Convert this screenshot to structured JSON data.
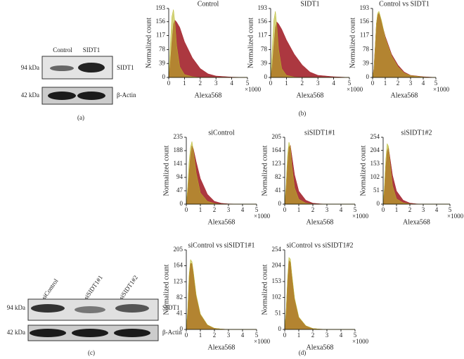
{
  "figure": {
    "panel_labels": [
      "(a)",
      "(b)",
      "(c)",
      "(d)"
    ],
    "blot_a": {
      "columns": [
        "Control",
        "SIDT1"
      ],
      "markers": [
        "94 kDa",
        "42 kDa"
      ],
      "proteins": [
        "SIDT1",
        "β-Actin"
      ]
    },
    "blot_c": {
      "columns": [
        "siControl",
        "siSIDT1#1",
        "siSIDT1#2"
      ],
      "markers": [
        "94 kDa",
        "42 kDa"
      ],
      "proteins": [
        "SIDT1",
        "β-Actin"
      ]
    }
  },
  "chart_data": [
    {
      "type": "area",
      "title": "Control",
      "x_label": "Alexa568",
      "x_unit": "×1000",
      "y_label": "Normalized count",
      "xlim": [
        0,
        5
      ],
      "xticks": [
        0,
        1,
        2,
        3,
        4,
        5
      ],
      "ylim": [
        0,
        193
      ],
      "yticks": [
        0,
        39,
        78,
        117,
        156,
        193
      ],
      "x": [
        0,
        0.1,
        0.2,
        0.3,
        0.4,
        0.5,
        0.7,
        1,
        1.5,
        2,
        2.5,
        3,
        4,
        5
      ],
      "series": [
        {
          "color": "#a3222b",
          "values": [
            0,
            40,
            100,
            150,
            160,
            155,
            140,
            100,
            55,
            25,
            10,
            4,
            1,
            0
          ]
        },
        {
          "color": "#b8b828",
          "values": [
            0,
            90,
            170,
            190,
            150,
            90,
            30,
            8,
            2,
            0,
            0,
            0,
            0,
            0
          ]
        }
      ]
    },
    {
      "type": "area",
      "title": "SIDT1",
      "x_label": "Alexa568",
      "x_unit": "×1000",
      "y_label": "Normalized count",
      "xlim": [
        0,
        5
      ],
      "xticks": [
        0,
        1,
        2,
        3,
        4,
        5
      ],
      "ylim": [
        0,
        193
      ],
      "yticks": [
        0,
        39,
        78,
        117,
        156,
        193
      ],
      "x": [
        0,
        0.1,
        0.2,
        0.3,
        0.4,
        0.5,
        0.7,
        1,
        1.5,
        2,
        2.5,
        3,
        4,
        5
      ],
      "series": [
        {
          "color": "#a3222b",
          "values": [
            0,
            30,
            90,
            140,
            155,
            150,
            135,
            105,
            65,
            35,
            15,
            6,
            2,
            0
          ]
        },
        {
          "color": "#b8b828",
          "values": [
            0,
            80,
            160,
            185,
            140,
            80,
            25,
            6,
            1,
            0,
            0,
            0,
            0,
            0
          ]
        }
      ]
    },
    {
      "type": "area",
      "title": "Control vs SIDT1",
      "x_label": "Alexa568",
      "x_unit": "×1000",
      "y_label": "Normalized count",
      "xlim": [
        0,
        5
      ],
      "xticks": [
        0,
        1,
        2,
        3,
        4,
        5
      ],
      "ylim": [
        0,
        193
      ],
      "yticks": [
        0,
        39,
        78,
        117,
        156,
        193
      ],
      "x": [
        0,
        0.1,
        0.2,
        0.3,
        0.4,
        0.5,
        0.7,
        1,
        1.5,
        2,
        2.5,
        3,
        4,
        5
      ],
      "series": [
        {
          "color": "#a3222b",
          "values": [
            0,
            25,
            85,
            150,
            175,
            180,
            155,
            115,
            65,
            35,
            15,
            6,
            2,
            0
          ]
        },
        {
          "color": "#b8b828",
          "values": [
            0,
            20,
            80,
            150,
            180,
            185,
            160,
            110,
            60,
            30,
            12,
            5,
            1,
            0
          ]
        }
      ]
    },
    {
      "type": "area",
      "title": "siControl",
      "x_label": "Alexa568",
      "x_unit": "×1000",
      "y_label": "Normalized count",
      "xlim": [
        0,
        5
      ],
      "xticks": [
        0,
        1,
        2,
        3,
        4,
        5
      ],
      "ylim": [
        0,
        235
      ],
      "yticks": [
        0,
        47,
        94,
        141,
        188,
        235
      ],
      "x": [
        0,
        0.1,
        0.2,
        0.3,
        0.4,
        0.5,
        0.7,
        1,
        1.5,
        2,
        2.5,
        3,
        4,
        5
      ],
      "series": [
        {
          "color": "#a3222b",
          "values": [
            0,
            40,
            110,
            170,
            205,
            195,
            150,
            90,
            35,
            10,
            3,
            1,
            0,
            0
          ]
        },
        {
          "color": "#b8b828",
          "values": [
            0,
            60,
            150,
            200,
            220,
            190,
            110,
            40,
            10,
            2,
            0,
            0,
            0,
            0
          ]
        }
      ]
    },
    {
      "type": "area",
      "title": "siSIDT1#1",
      "x_label": "Alexa568",
      "x_unit": "×1000",
      "y_label": "Normalized count",
      "xlim": [
        0,
        5
      ],
      "xticks": [
        0,
        1,
        2,
        3,
        4,
        5
      ],
      "ylim": [
        0,
        205
      ],
      "yticks": [
        0,
        41,
        82,
        123,
        164,
        205
      ],
      "x": [
        0,
        0.1,
        0.2,
        0.3,
        0.4,
        0.5,
        0.7,
        1,
        1.5,
        2,
        2.5,
        3,
        4,
        5
      ],
      "series": [
        {
          "color": "#a3222b",
          "values": [
            0,
            45,
            120,
            175,
            180,
            150,
            90,
            40,
            12,
            3,
            1,
            0,
            0,
            0
          ]
        },
        {
          "color": "#b8b828",
          "values": [
            0,
            60,
            150,
            190,
            175,
            120,
            50,
            15,
            3,
            0,
            0,
            0,
            0,
            0
          ]
        }
      ]
    },
    {
      "type": "area",
      "title": "siSIDT1#2",
      "x_label": "Alexa568",
      "x_unit": "×1000",
      "y_label": "Normalized count",
      "xlim": [
        0,
        5
      ],
      "xticks": [
        0,
        1,
        2,
        3,
        4,
        5
      ],
      "ylim": [
        0,
        254
      ],
      "yticks": [
        0,
        51,
        102,
        153,
        204,
        254
      ],
      "x": [
        0,
        0.1,
        0.2,
        0.3,
        0.4,
        0.5,
        0.7,
        1,
        1.5,
        2,
        2.5,
        3,
        4,
        5
      ],
      "series": [
        {
          "color": "#a3222b",
          "values": [
            0,
            50,
            140,
            200,
            215,
            180,
            110,
            50,
            15,
            4,
            1,
            0,
            0,
            0
          ]
        },
        {
          "color": "#b8b828",
          "values": [
            0,
            70,
            170,
            230,
            220,
            160,
            70,
            20,
            5,
            1,
            0,
            0,
            0,
            0
          ]
        }
      ]
    },
    {
      "type": "area",
      "title": "siControl vs siSIDT1#1",
      "x_label": "Alexa568",
      "x_unit": "×1000",
      "y_label": "Normalized count",
      "xlim": [
        0,
        5
      ],
      "xticks": [
        0,
        1,
        2,
        3,
        4,
        5
      ],
      "ylim": [
        0,
        205
      ],
      "yticks": [
        0,
        41,
        82,
        123,
        164,
        205
      ],
      "x": [
        0,
        0.1,
        0.2,
        0.3,
        0.4,
        0.5,
        0.7,
        1,
        1.5,
        2,
        2.5,
        3,
        4,
        5
      ],
      "series": [
        {
          "color": "#a3222b",
          "values": [
            0,
            45,
            130,
            170,
            170,
            145,
            85,
            38,
            11,
            3,
            1,
            0,
            0,
            0
          ]
        },
        {
          "color": "#b8b828",
          "values": [
            0,
            50,
            140,
            180,
            175,
            150,
            90,
            40,
            12,
            3,
            1,
            0,
            0,
            0
          ]
        }
      ]
    },
    {
      "type": "area",
      "title": "siControl vs siSIDT1#2",
      "x_label": "Alexa568",
      "x_unit": "×1000",
      "y_label": "Normalized count",
      "xlim": [
        0,
        5
      ],
      "xticks": [
        0,
        1,
        2,
        3,
        4,
        5
      ],
      "ylim": [
        0,
        254
      ],
      "yticks": [
        0,
        51,
        102,
        153,
        204,
        254
      ],
      "x": [
        0,
        0.1,
        0.2,
        0.3,
        0.4,
        0.5,
        0.7,
        1,
        1.5,
        2,
        2.5,
        3,
        4,
        5
      ],
      "series": [
        {
          "color": "#a3222b",
          "values": [
            0,
            55,
            150,
            220,
            215,
            170,
            95,
            38,
            11,
            3,
            1,
            0,
            0,
            0
          ]
        },
        {
          "color": "#b8b828",
          "values": [
            0,
            60,
            160,
            230,
            225,
            180,
            100,
            40,
            12,
            3,
            1,
            0,
            0,
            0
          ]
        }
      ]
    }
  ]
}
